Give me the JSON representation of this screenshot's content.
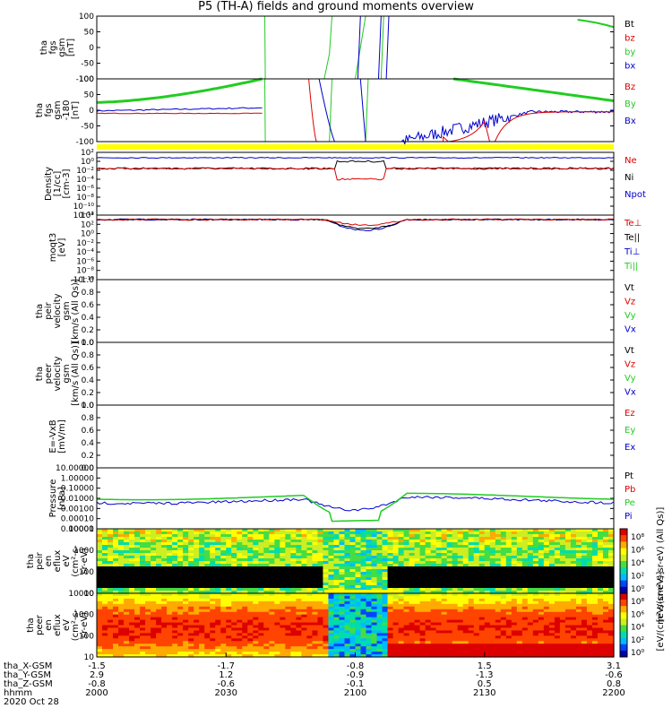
{
  "title": "P5 (TH-A) fields and ground moments overview",
  "panels": [
    {
      "id": "fgs",
      "ylabel": [
        "tha",
        "fgs",
        "gsm",
        "[nT]"
      ],
      "ticks": [
        "100",
        "50",
        "0",
        "-50",
        "-100"
      ],
      "legend": [
        {
          "t": "Bt",
          "c": "#000000"
        },
        {
          "t": "bz",
          "c": "#dd0000"
        },
        {
          "t": "by",
          "c": "#22cc22"
        },
        {
          "t": "bx",
          "c": "#0000cc"
        }
      ]
    },
    {
      "id": "fgs_clip",
      "ylabel": [
        "tha",
        "fgs",
        "gsm",
        "-180",
        "[nT]"
      ],
      "ticks": [
        "100",
        "50",
        "0",
        "-50",
        "-100"
      ],
      "legend": [
        {
          "t": "Bz",
          "c": "#dd0000"
        },
        {
          "t": "By",
          "c": "#22cc22"
        },
        {
          "t": "Bx",
          "c": "#0000cc"
        }
      ]
    },
    {
      "id": "density",
      "ylabel": [
        "Density",
        "[1/cc]",
        "[cm-3]"
      ],
      "ticks": [
        "10²",
        "10⁰",
        "10⁻²",
        "10⁻⁴",
        "10⁻⁶",
        "10⁻⁸",
        "10⁻¹⁰",
        "10⁻¹²"
      ],
      "legend": [
        {
          "t": "Ne",
          "c": "#dd0000"
        },
        {
          "t": "Ni",
          "c": "#000000"
        },
        {
          "t": "Npot",
          "c": "#0000cc"
        }
      ]
    },
    {
      "id": "temp",
      "ylabel": [
        "moqt3",
        "[eV]"
      ],
      "ticks": [
        "10⁴",
        "10²",
        "10⁰",
        "10⁻²",
        "10⁻⁴",
        "10⁻⁶",
        "10⁻⁸",
        "10⁻¹⁰"
      ],
      "legend": [
        {
          "t": "Te⊥",
          "c": "#dd0000"
        },
        {
          "t": "Te||",
          "c": "#000000"
        },
        {
          "t": "Ti⊥",
          "c": "#0000cc"
        },
        {
          "t": "Ti||",
          "c": "#22cc22"
        }
      ]
    },
    {
      "id": "peir_vel",
      "ylabel": [
        "tha",
        "peir",
        "velocity",
        "gsm",
        "[km/s (All Qs)]"
      ],
      "ticks": [
        "1.0",
        "0.8",
        "0.6",
        "0.4",
        "0.2",
        "0.0"
      ],
      "legend": [
        {
          "t": "Vt",
          "c": "#000000"
        },
        {
          "t": "Vz",
          "c": "#dd0000"
        },
        {
          "t": "Vy",
          "c": "#22cc22"
        },
        {
          "t": "Vx",
          "c": "#0000cc"
        }
      ]
    },
    {
      "id": "peer_vel",
      "ylabel": [
        "tha",
        "peer",
        "velocity",
        "gsm",
        "[km/s (All Qs)]"
      ],
      "ticks": [
        "1.0",
        "0.8",
        "0.6",
        "0.4",
        "0.2",
        "0.0"
      ],
      "legend": [
        {
          "t": "Vt",
          "c": "#000000"
        },
        {
          "t": "Vz",
          "c": "#dd0000"
        },
        {
          "t": "Vy",
          "c": "#22cc22"
        },
        {
          "t": "Vx",
          "c": "#0000cc"
        }
      ]
    },
    {
      "id": "efield",
      "ylabel": [
        "E=-VxB",
        "[mV/m]"
      ],
      "ticks": [
        "1.0",
        "0.8",
        "0.6",
        "0.4",
        "0.2",
        "0.0"
      ],
      "legend": [
        {
          "t": "Ez",
          "c": "#dd0000"
        },
        {
          "t": "Ey",
          "c": "#22cc22"
        },
        {
          "t": "Ex",
          "c": "#0000cc"
        }
      ]
    },
    {
      "id": "pressure",
      "ylabel": [
        "Pressure",
        "[nPa]"
      ],
      "ticks": [
        "10.00000",
        "1.00000",
        "0.10000",
        "0.01000",
        "0.00100",
        "0.00010",
        "0.00001"
      ],
      "legend": [
        {
          "t": "Pt",
          "c": "#000000"
        },
        {
          "t": "Pb",
          "c": "#dd0000"
        },
        {
          "t": "Pe",
          "c": "#22cc22"
        },
        {
          "t": "Pi",
          "c": "#0000cc"
        }
      ]
    },
    {
      "id": "peir_spec",
      "ylabel": [
        "tha",
        "peir",
        "en",
        "eflux",
        "eV",
        "(cm²-s-",
        "sr-eV)"
      ],
      "ticks": [
        "10000",
        "1000",
        "100",
        "10"
      ],
      "cbar_ticks": [
        "10⁸",
        "10⁶",
        "10⁴",
        "10²",
        "10⁰"
      ]
    },
    {
      "id": "peer_spec",
      "ylabel": [
        "tha",
        "peer",
        "en",
        "eflux",
        "eV",
        "(cm²-s-",
        "sr-eV)"
      ],
      "ticks": [
        "10000",
        "1000",
        "100",
        "10"
      ],
      "cbar_ticks": [
        "10⁸",
        "10⁶",
        "10⁴",
        "10²",
        "10⁰"
      ]
    }
  ],
  "cbar_label": "[eV/(cm²-s-sr-eV)]",
  "cbar_label_top": "[eV/(cm²-s-sr-eV) (All Qs)]",
  "bottom_labels": [
    "tha_X-GSM",
    "tha_Y-GSM",
    "tha_Z-GSM",
    "hhmm",
    "2020 Oct 28"
  ],
  "bottom_columns": [
    {
      "x": "-1.5",
      "y": "2.9",
      "z": "-0.8",
      "t": "2000"
    },
    {
      "x": "-1.7",
      "y": "1.2",
      "z": "-0.6",
      "t": "2030"
    },
    {
      "x": "-0.8",
      "y": "-0.9",
      "z": "-0.1",
      "t": "2100"
    },
    {
      "x": "1.5",
      "y": "-1.3",
      "z": "0.5",
      "t": "2130"
    },
    {
      "x": "3.1",
      "y": "-0.6",
      "z": "0.8",
      "t": "2200"
    }
  ],
  "colors": {
    "red": "#dd0000",
    "green": "#22cc22",
    "blue": "#0000cc",
    "yellow": "#ffff00"
  },
  "chart_data": {
    "type": "line",
    "title": "P5 (TH-A) fields and ground moments overview",
    "x_time_range": [
      "2020-10-28 20:00",
      "2020-10-28 22:00"
    ],
    "x_tick_labels": [
      "2000",
      "2030",
      "2100",
      "2130",
      "2200"
    ],
    "series_note": "Stacked THEMIS-A overview: FGM magnetic field (two panels), densities, temperatures, ion/electron velocities, E-field, pressures, ion and electron energy spectrograms.",
    "fgs_ylim": [
      -100,
      100
    ],
    "pressure_ylim_log": [
      1e-05,
      10
    ]
  }
}
